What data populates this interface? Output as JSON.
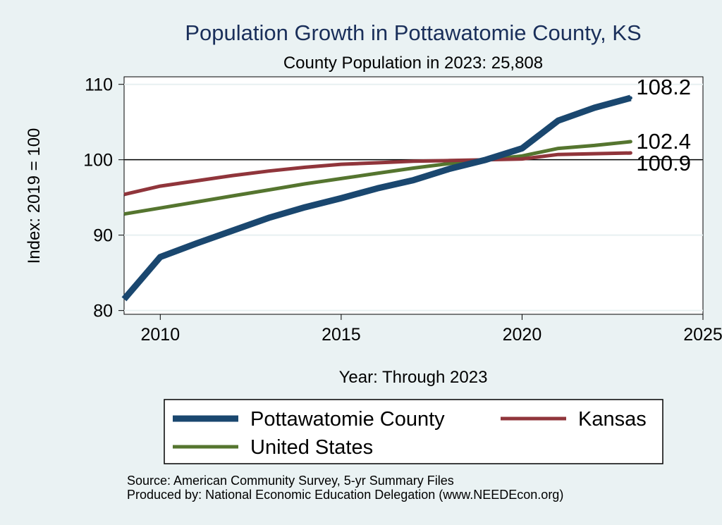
{
  "chart_data": {
    "type": "line",
    "title": "Population Growth in Pottawatomie County, KS",
    "subtitle": "County Population in 2023: 25,808",
    "xlabel": "Year: Through 2023",
    "ylabel": "Index: 2019 = 100",
    "xlim": [
      2009,
      2025
    ],
    "ylim": [
      79.5,
      111
    ],
    "xticks": [
      2010,
      2015,
      2020,
      2025
    ],
    "yticks": [
      80,
      90,
      100,
      110
    ],
    "reference_line": 100,
    "grid": "horizontal",
    "legend_position": "bottom",
    "x": [
      2009,
      2010,
      2011,
      2012,
      2013,
      2014,
      2015,
      2016,
      2017,
      2018,
      2019,
      2020,
      2021,
      2022,
      2023
    ],
    "series": [
      {
        "name": "Pottawatomie  County",
        "color": "#1a476f",
        "values": [
          81.5,
          87.1,
          88.9,
          90.6,
          92.3,
          93.7,
          94.9,
          96.2,
          97.3,
          98.8,
          100.0,
          101.5,
          105.2,
          106.9,
          108.2
        ],
        "end_label": "108.2"
      },
      {
        "name": "Kansas",
        "color": "#90353b",
        "values": [
          95.4,
          96.5,
          97.2,
          97.9,
          98.5,
          99.0,
          99.4,
          99.6,
          99.8,
          99.9,
          100.0,
          100.1,
          100.7,
          100.8,
          100.9
        ],
        "end_label": "100.9"
      },
      {
        "name": "United States",
        "color": "#55752f",
        "values": [
          92.8,
          93.6,
          94.4,
          95.2,
          96.0,
          96.8,
          97.5,
          98.2,
          98.9,
          99.5,
          100.0,
          100.5,
          101.5,
          101.9,
          102.4
        ],
        "end_label": "102.4"
      }
    ]
  },
  "footer": {
    "source": "Source: American Community Survey, 5-yr Summary Files",
    "produced_by": "Produced by: National Economic Education Delegation (www.NEEDEcon.org)"
  }
}
